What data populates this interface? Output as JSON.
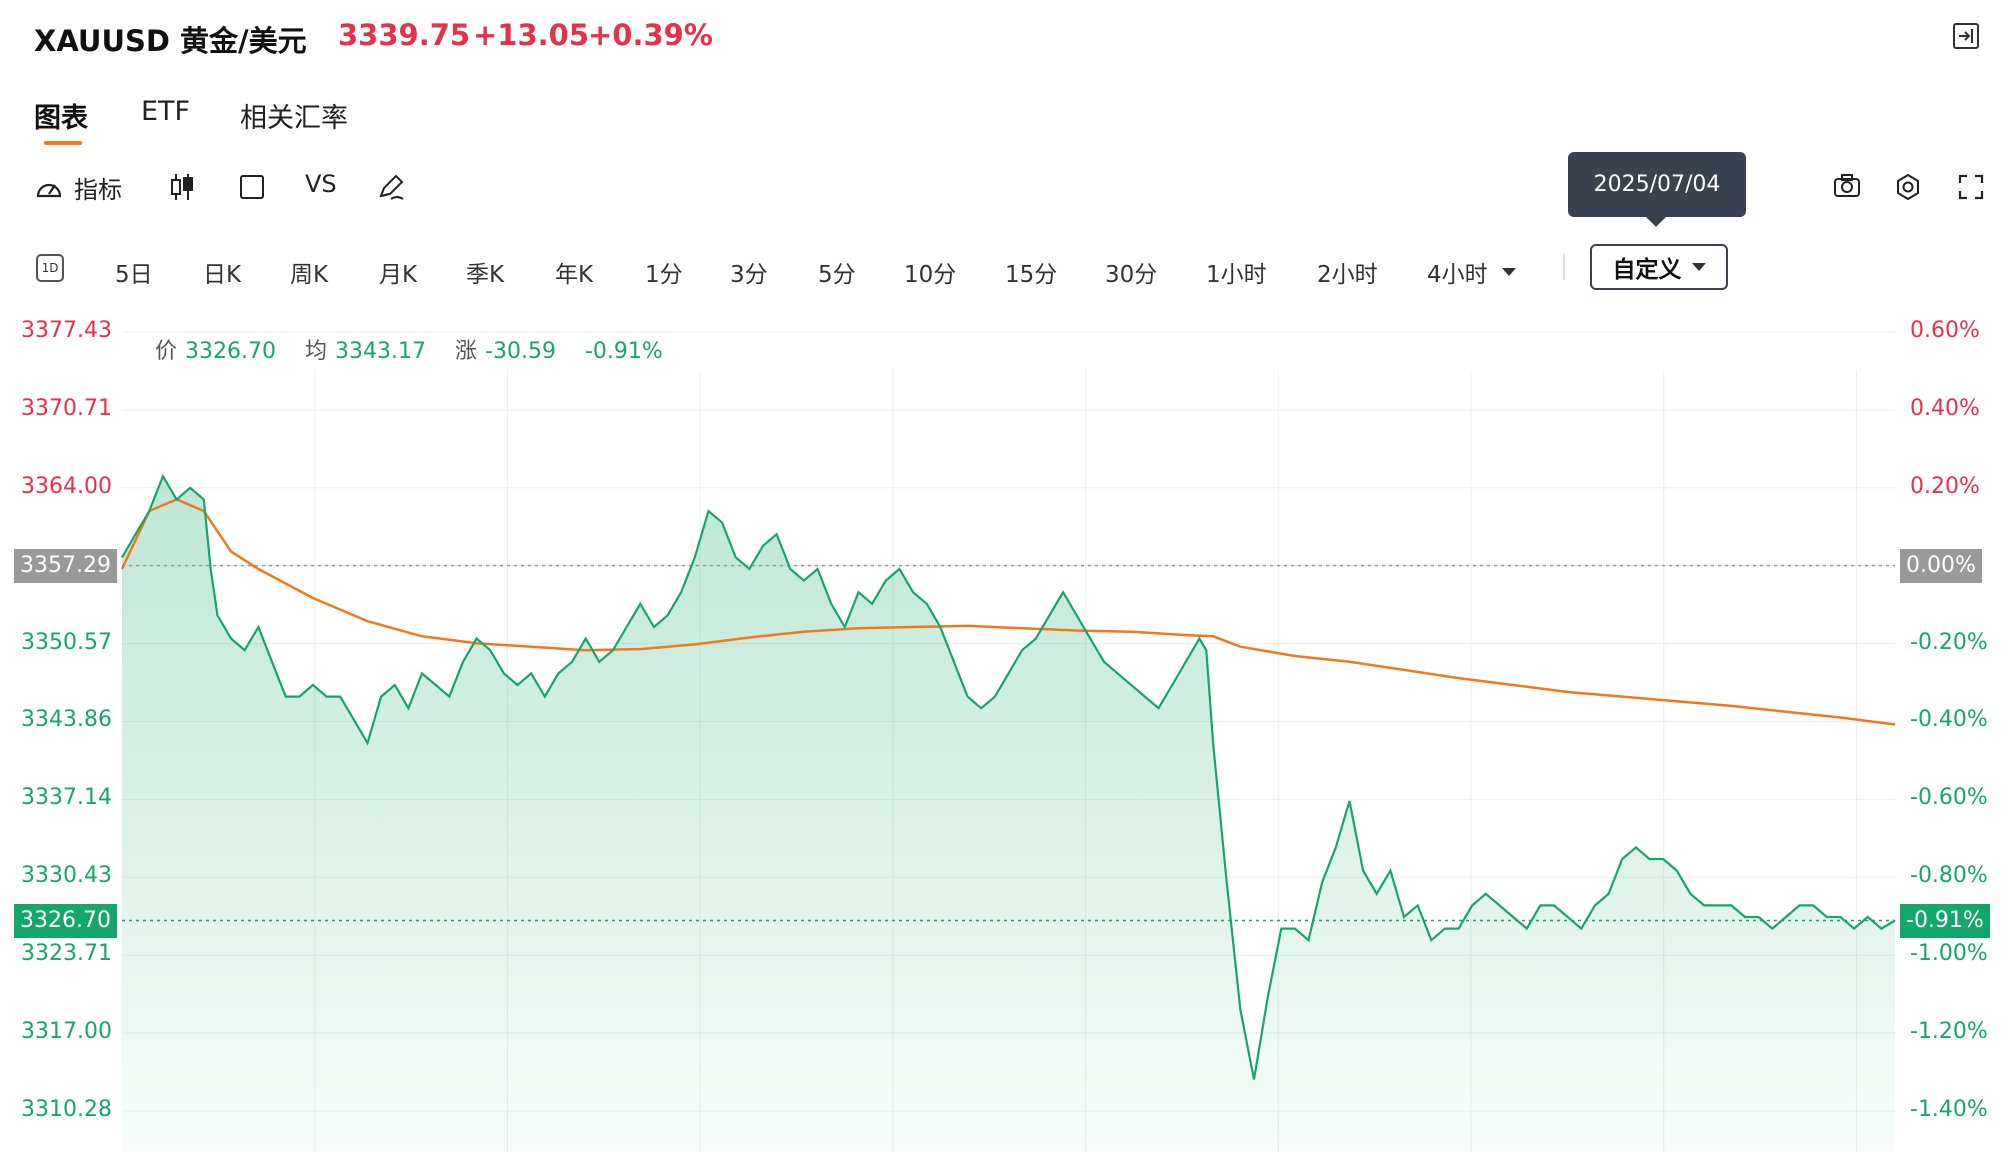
{
  "header": {
    "title": "XAUUSD 黄金/美元",
    "price": "3339.75",
    "change": "+13.05",
    "change_pct": "+0.39%"
  },
  "tabs": [
    {
      "label": "图表",
      "active": true
    },
    {
      "label": "ETF",
      "active": false
    },
    {
      "label": "相关汇率",
      "active": false
    }
  ],
  "toolbar": {
    "indicators_label": "指标",
    "vs_label": "VS"
  },
  "tooltip": "2025/07/04",
  "intervals": [
    "5日",
    "日K",
    "周K",
    "月K",
    "季K",
    "年K",
    "1分",
    "3分",
    "5分",
    "10分",
    "15分",
    "30分",
    "1小时",
    "2小时",
    "4小时"
  ],
  "interval_icon_label": "1D",
  "custom_label": "自定义",
  "info": {
    "price_label": "价",
    "price_value": "3326.70",
    "avg_label": "均",
    "avg_value": "3343.17",
    "change_label": "涨",
    "change_value": "-30.59",
    "change_pct": "-0.91%"
  },
  "colors": {
    "up": "#e5314a",
    "down": "#15a66a",
    "line": "#15a66a",
    "avg_line": "#ee7a1c",
    "badge_gray": "#999999",
    "badge_green": "#15a66a"
  },
  "chart_data": {
    "type": "area",
    "y_ticks_left": [
      "3377.43",
      "3370.71",
      "3364.00",
      "3357.29",
      "3350.57",
      "3343.86",
      "3337.14",
      "3330.43",
      "3323.71",
      "3317.00",
      "3310.28"
    ],
    "y_ticks_right": [
      "0.60%",
      "0.40%",
      "0.20%",
      "0.00%",
      "-0.20%",
      "-0.40%",
      "-0.60%",
      "-0.80%",
      "-1.00%",
      "-1.20%",
      "-1.40%"
    ],
    "reference_price": "3357.29",
    "reference_pct": "0.00%",
    "current_price": "3326.70",
    "current_pct": "-0.91%",
    "ylim": [
      3310.28,
      3377.43
    ],
    "price_series": [
      [
        0,
        3358
      ],
      [
        1,
        3360
      ],
      [
        2,
        3362
      ],
      [
        3,
        3365
      ],
      [
        4,
        3363
      ],
      [
        5,
        3364
      ],
      [
        6,
        3363
      ],
      [
        6.5,
        3357
      ],
      [
        7,
        3353
      ],
      [
        8,
        3351
      ],
      [
        9,
        3350
      ],
      [
        10,
        3352
      ],
      [
        11,
        3349
      ],
      [
        12,
        3346
      ],
      [
        13,
        3346
      ],
      [
        14,
        3347
      ],
      [
        15,
        3346
      ],
      [
        16,
        3346
      ],
      [
        17,
        3344
      ],
      [
        18,
        3342
      ],
      [
        19,
        3346
      ],
      [
        20,
        3347
      ],
      [
        21,
        3345
      ],
      [
        22,
        3348
      ],
      [
        23,
        3347
      ],
      [
        24,
        3346
      ],
      [
        25,
        3349
      ],
      [
        26,
        3351
      ],
      [
        27,
        3350
      ],
      [
        28,
        3348
      ],
      [
        29,
        3347
      ],
      [
        30,
        3348
      ],
      [
        31,
        3346
      ],
      [
        32,
        3348
      ],
      [
        33,
        3349
      ],
      [
        34,
        3351
      ],
      [
        35,
        3349
      ],
      [
        36,
        3350
      ],
      [
        37,
        3352
      ],
      [
        38,
        3354
      ],
      [
        39,
        3352
      ],
      [
        40,
        3353
      ],
      [
        41,
        3355
      ],
      [
        42,
        3358
      ],
      [
        43,
        3362
      ],
      [
        44,
        3361
      ],
      [
        45,
        3358
      ],
      [
        46,
        3357
      ],
      [
        47,
        3359
      ],
      [
        48,
        3360
      ],
      [
        49,
        3357
      ],
      [
        50,
        3356
      ],
      [
        51,
        3357
      ],
      [
        52,
        3354
      ],
      [
        53,
        3352
      ],
      [
        54,
        3355
      ],
      [
        55,
        3354
      ],
      [
        56,
        3356
      ],
      [
        57,
        3357
      ],
      [
        58,
        3355
      ],
      [
        59,
        3354
      ],
      [
        60,
        3352
      ],
      [
        61,
        3349
      ],
      [
        62,
        3346
      ],
      [
        63,
        3345
      ],
      [
        64,
        3346
      ],
      [
        65,
        3348
      ],
      [
        66,
        3350
      ],
      [
        67,
        3351
      ],
      [
        68,
        3353
      ],
      [
        69,
        3355
      ],
      [
        70,
        3353
      ],
      [
        71,
        3351
      ],
      [
        72,
        3349
      ],
      [
        73,
        3348
      ],
      [
        74,
        3347
      ],
      [
        75,
        3346
      ],
      [
        76,
        3345
      ],
      [
        77,
        3347
      ],
      [
        78,
        3349
      ],
      [
        79,
        3351
      ],
      [
        79.5,
        3350
      ],
      [
        80,
        3342
      ],
      [
        81,
        3330
      ],
      [
        82,
        3319
      ],
      [
        83,
        3313
      ],
      [
        84,
        3320
      ],
      [
        85,
        3326
      ],
      [
        86,
        3326
      ],
      [
        87,
        3325
      ],
      [
        88,
        3330
      ],
      [
        89,
        3333
      ],
      [
        90,
        3337
      ],
      [
        91,
        3331
      ],
      [
        92,
        3329
      ],
      [
        93,
        3331
      ],
      [
        94,
        3327
      ],
      [
        95,
        3328
      ],
      [
        96,
        3325
      ],
      [
        97,
        3326
      ],
      [
        98,
        3326
      ],
      [
        99,
        3328
      ],
      [
        100,
        3329
      ],
      [
        101,
        3328
      ],
      [
        102,
        3327
      ],
      [
        103,
        3326
      ],
      [
        104,
        3328
      ],
      [
        105,
        3328
      ],
      [
        106,
        3327
      ],
      [
        107,
        3326
      ],
      [
        108,
        3328
      ],
      [
        109,
        3329
      ],
      [
        110,
        3332
      ],
      [
        111,
        3333
      ],
      [
        112,
        3332
      ],
      [
        113,
        3332
      ],
      [
        114,
        3331
      ],
      [
        115,
        3329
      ],
      [
        116,
        3328
      ],
      [
        117,
        3328
      ],
      [
        118,
        3328
      ],
      [
        119,
        3327
      ],
      [
        120,
        3327
      ],
      [
        121,
        3326
      ],
      [
        122,
        3327
      ],
      [
        123,
        3328
      ],
      [
        124,
        3328
      ],
      [
        125,
        3327
      ],
      [
        126,
        3327
      ],
      [
        127,
        3326
      ],
      [
        128,
        3327
      ],
      [
        129,
        3326
      ],
      [
        130,
        3326.7
      ]
    ],
    "avg_series": [
      [
        0,
        3357
      ],
      [
        2,
        3362
      ],
      [
        4,
        3363
      ],
      [
        6,
        3362
      ],
      [
        8,
        3358.5
      ],
      [
        10,
        3357
      ],
      [
        14,
        3354.5
      ],
      [
        18,
        3352.5
      ],
      [
        22,
        3351.2
      ],
      [
        26,
        3350.6
      ],
      [
        30,
        3350.3
      ],
      [
        34,
        3350.0
      ],
      [
        38,
        3350.1
      ],
      [
        42,
        3350.5
      ],
      [
        46,
        3351.1
      ],
      [
        50,
        3351.6
      ],
      [
        54,
        3351.9
      ],
      [
        58,
        3352.0
      ],
      [
        62,
        3352.1
      ],
      [
        66,
        3351.9
      ],
      [
        70,
        3351.7
      ],
      [
        74,
        3351.6
      ],
      [
        78,
        3351.3
      ],
      [
        80,
        3351.2
      ],
      [
        82,
        3350.3
      ],
      [
        86,
        3349.5
      ],
      [
        90,
        3349.0
      ],
      [
        94,
        3348.3
      ],
      [
        98,
        3347.6
      ],
      [
        102,
        3347.0
      ],
      [
        106,
        3346.4
      ],
      [
        110,
        3346.0
      ],
      [
        114,
        3345.6
      ],
      [
        118,
        3345.2
      ],
      [
        122,
        3344.7
      ],
      [
        126,
        3344.2
      ],
      [
        130,
        3343.6
      ]
    ]
  }
}
